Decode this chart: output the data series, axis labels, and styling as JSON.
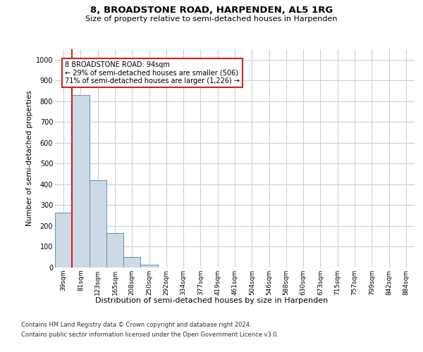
{
  "title_line1": "8, BROADSTONE ROAD, HARPENDEN, AL5 1RG",
  "title_line2": "Size of property relative to semi-detached houses in Harpenden",
  "xlabel": "Distribution of semi-detached houses by size in Harpenden",
  "ylabel": "Number of semi-detached properties",
  "categories": [
    "39sqm",
    "81sqm",
    "123sqm",
    "165sqm",
    "208sqm",
    "250sqm",
    "292sqm",
    "334sqm",
    "377sqm",
    "419sqm",
    "461sqm",
    "504sqm",
    "546sqm",
    "588sqm",
    "630sqm",
    "673sqm",
    "715sqm",
    "757sqm",
    "799sqm",
    "842sqm",
    "884sqm"
  ],
  "values": [
    265,
    830,
    420,
    165,
    50,
    12,
    0,
    0,
    0,
    0,
    0,
    0,
    0,
    0,
    0,
    0,
    0,
    0,
    0,
    0,
    0
  ],
  "bar_color": "#cdd9e5",
  "bar_edge_color": "#6090b8",
  "vline_color": "#cc2222",
  "annotation_text": "8 BROADSTONE ROAD: 94sqm\n← 29% of semi-detached houses are smaller (506)\n71% of semi-detached houses are larger (1,226) →",
  "annotation_box_facecolor": "#ffffff",
  "annotation_box_edgecolor": "#cc2222",
  "ylim": [
    0,
    1050
  ],
  "yticks": [
    0,
    100,
    200,
    300,
    400,
    500,
    600,
    700,
    800,
    900,
    1000
  ],
  "footnote1": "Contains HM Land Registry data © Crown copyright and database right 2024.",
  "footnote2": "Contains public sector information licensed under the Open Government Licence v3.0.",
  "background_color": "#ffffff",
  "grid_color": "#c8d0d8",
  "title1_fontsize": 9.5,
  "title2_fontsize": 8.0,
  "ylabel_fontsize": 7.5,
  "xlabel_fontsize": 8.0,
  "tick_fontsize": 6.5,
  "annotation_fontsize": 7.0,
  "footnote_fontsize": 6.0
}
